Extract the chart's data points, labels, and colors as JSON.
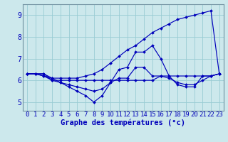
{
  "title": "Graphe des températures (°c)",
  "bg_color": "#cce8ec",
  "grid_color": "#99ccd4",
  "line_color": "#0000bb",
  "x_hours": [
    0,
    1,
    2,
    3,
    4,
    5,
    6,
    7,
    8,
    9,
    10,
    11,
    12,
    13,
    14,
    15,
    16,
    17,
    18,
    19,
    20,
    21,
    22,
    23
  ],
  "series_rising": [
    6.3,
    6.3,
    6.3,
    6.1,
    6.1,
    6.1,
    6.1,
    6.2,
    6.3,
    6.5,
    6.8,
    7.1,
    7.4,
    7.6,
    7.9,
    8.2,
    8.4,
    8.6,
    8.8,
    8.9,
    9.0,
    9.1,
    9.2,
    6.3
  ],
  "series_flat": [
    6.3,
    6.3,
    6.3,
    6.0,
    6.0,
    6.0,
    6.0,
    6.0,
    6.0,
    6.0,
    6.0,
    6.0,
    6.0,
    6.0,
    6.0,
    6.0,
    6.2,
    6.2,
    6.2,
    6.2,
    6.2,
    6.2,
    6.2,
    6.3
  ],
  "series_wavy2": [
    6.3,
    6.3,
    6.2,
    6.0,
    5.9,
    5.8,
    5.7,
    5.6,
    5.5,
    5.6,
    5.9,
    6.1,
    6.1,
    6.6,
    6.6,
    6.2,
    6.2,
    6.1,
    5.9,
    5.8,
    5.8,
    6.0,
    6.2,
    6.3
  ],
  "series_wavy1": [
    6.3,
    6.3,
    6.2,
    6.1,
    5.9,
    5.7,
    5.5,
    5.3,
    5.0,
    5.3,
    5.9,
    6.5,
    6.6,
    7.3,
    7.3,
    7.6,
    7.0,
    6.2,
    5.8,
    5.7,
    5.7,
    6.2,
    6.2,
    6.3
  ],
  "ylim_min": 4.6,
  "ylim_max": 9.5,
  "yticks": [
    5,
    6,
    7,
    8,
    9
  ],
  "xlim_min": -0.5,
  "xlim_max": 23.5,
  "tick_fontsize": 6.5,
  "xlabel_fontsize": 7.5
}
